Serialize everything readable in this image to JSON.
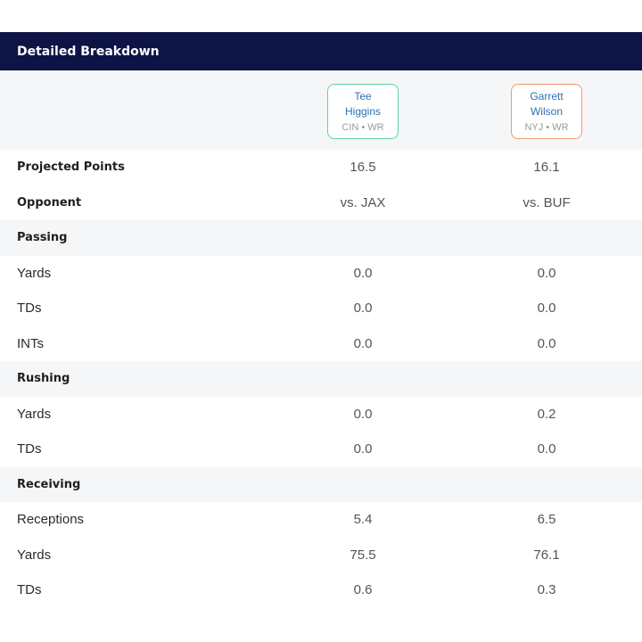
{
  "header": {
    "title": "Detailed Breakdown"
  },
  "players": [
    {
      "name": "Tee Higgins",
      "meta": "CIN • WR",
      "border_color": "#63d39a"
    },
    {
      "name": "Garrett Wilson",
      "meta": "NYJ • WR",
      "border_color": "#f19a6c"
    }
  ],
  "summary": {
    "projected_points": {
      "label": "Projected Points",
      "p1": "16.5",
      "p2": "16.1"
    },
    "opponent": {
      "label": "Opponent",
      "p1": "vs. JAX",
      "p2": "vs. BUF"
    }
  },
  "passing": {
    "heading": "Passing",
    "yards": {
      "label": "Yards",
      "p1": "0.0",
      "p2": "0.0"
    },
    "tds": {
      "label": "TDs",
      "p1": "0.0",
      "p2": "0.0"
    },
    "ints": {
      "label": "INTs",
      "p1": "0.0",
      "p2": "0.0"
    }
  },
  "rushing": {
    "heading": "Rushing",
    "yards": {
      "label": "Yards",
      "p1": "0.0",
      "p2": "0.2"
    },
    "tds": {
      "label": "TDs",
      "p1": "0.0",
      "p2": "0.0"
    }
  },
  "receiving": {
    "heading": "Receiving",
    "receptions": {
      "label": "Receptions",
      "p1": "5.4",
      "p2": "6.5"
    },
    "yards": {
      "label": "Yards",
      "p1": "75.5",
      "p2": "76.1"
    },
    "tds": {
      "label": "TDs",
      "p1": "0.6",
      "p2": "0.3"
    }
  }
}
